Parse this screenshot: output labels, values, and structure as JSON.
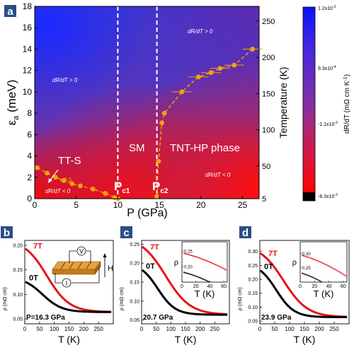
{
  "panels": {
    "a": "a",
    "b": "b",
    "c": "c",
    "d": "d"
  },
  "colors": {
    "panel_label_bg": "#2a4f86",
    "red_curve": "#e8141b",
    "black_curve": "#000000",
    "orange_points": "#f2a20a",
    "phase_line": "#ffffff",
    "low_color": "#ff0000",
    "high_color": "#0a1aff"
  },
  "chart_data": [
    {
      "id": "a",
      "type": "heatmap",
      "xlabel": "P (GPa)",
      "ylabel_left": "ε",
      "ylabel_left_sub": "a",
      "ylabel_left_unit": " (meV)",
      "ylabel_right": "Temperature (K)",
      "xlim": [
        0,
        27
      ],
      "ylim": [
        0,
        18
      ],
      "xticks": [
        0,
        5,
        10,
        15,
        20,
        25
      ],
      "yticks_left": [
        0,
        2,
        4,
        6,
        8,
        10,
        12,
        14,
        16,
        18
      ],
      "yticks_right": [
        5,
        50,
        100,
        150,
        200,
        250
      ],
      "phase_boundaries": [
        {
          "label": "P",
          "sub": "c1",
          "x": 10.0
        },
        {
          "label": "P",
          "sub": "c2",
          "x": 14.7
        }
      ],
      "region_labels": {
        "tts": "TT-S",
        "sm": "SM",
        "tnt": "TNT-HP phase",
        "drdt_pos_left": "dR/dT > 0",
        "drdt_neg_left": "dR/dT < 0",
        "drdt_pos_right": "dR/dT > 0",
        "drdt_neg_right": "dR/dT < 0",
        "scale_note": "x 0.5"
      },
      "gap_left": {
        "x": [
          0.3,
          1.5,
          2.5,
          3.5,
          4.5,
          5.5,
          7.0,
          8.5,
          9.6,
          10.0
        ],
        "y": [
          2.9,
          2.4,
          2.0,
          1.7,
          1.4,
          1.2,
          0.9,
          0.5,
          0.1,
          0.0
        ]
      },
      "gap_right": {
        "x": [
          14.7,
          14.9,
          15.3,
          15.6,
          17.7,
          19.7,
          21.2,
          22.3,
          24.0,
          26.2
        ],
        "y": [
          0.2,
          3.5,
          7.1,
          8.0,
          10.0,
          11.4,
          11.8,
          12.2,
          12.5,
          14.0
        ]
      },
      "colorbar": {
        "label": "dR/dT (mΩ cm K",
        "label_sup": "-1",
        "label_end": ")",
        "ticks": [
          "1.2x10",
          "9.3x10",
          "-1.1x10",
          "-8.3x10"
        ],
        "tick_exps": [
          "-2",
          "-4",
          "-3",
          "-3"
        ]
      }
    },
    {
      "id": "b",
      "type": "line",
      "xlabel": "T (K)",
      "ylabel": "ρ (mΩ cm)",
      "xlim": [
        0,
        300
      ],
      "ylim": [
        0.04,
        0.21
      ],
      "xticks": [
        0,
        50,
        100,
        150,
        200,
        250
      ],
      "yticks": [
        0.05,
        0.1,
        0.15,
        0.2
      ],
      "annotation": "P=16.3 GPa",
      "inset_labels": {
        "v": "V",
        "i": "I",
        "h": "H"
      },
      "series": [
        {
          "name": "7T",
          "T0": 75,
          "w": 38,
          "base": 0.064,
          "amp": 0.148
        },
        {
          "name": "0T",
          "T0": 60,
          "w": 33,
          "base": 0.064,
          "amp": 0.072
        }
      ]
    },
    {
      "id": "c",
      "type": "line",
      "xlabel": "T (K)",
      "ylabel": "ρ (mΩ cm)",
      "xlim": [
        0,
        300
      ],
      "ylim": [
        0.04,
        0.26
      ],
      "xticks": [
        0,
        50,
        100,
        150,
        200,
        250
      ],
      "yticks": [
        0.05,
        0.1,
        0.15,
        0.2,
        0.25
      ],
      "annotation": "20.7 GPa",
      "inset": {
        "xlabel": "T (K)",
        "ylabel": "ρ",
        "xticks": [
          0,
          20,
          40,
          60
        ],
        "yticks": [
          0.2,
          0.25
        ],
        "xlim": [
          0,
          65
        ],
        "ylim": [
          0.15,
          0.28
        ]
      },
      "series": [
        {
          "name": "7T",
          "T0": 82,
          "w": 42,
          "base": 0.064,
          "amp": 0.206
        },
        {
          "name": "0T",
          "T0": 55,
          "w": 30,
          "base": 0.064,
          "amp": 0.138
        }
      ]
    },
    {
      "id": "d",
      "type": "line",
      "xlabel": "T (K)",
      "ylabel": "ρ (mΩ cm)",
      "xlim": [
        0,
        300
      ],
      "ylim": [
        0.04,
        0.34
      ],
      "xticks": [
        0,
        50,
        100,
        150,
        200,
        250
      ],
      "yticks": [
        0.05,
        0.1,
        0.15,
        0.2,
        0.25,
        0.3
      ],
      "annotation": "23.9 GPa",
      "inset": {
        "xlabel": "T (K)",
        "ylabel": "ρ",
        "xticks": [
          0,
          20,
          40,
          60
        ],
        "yticks": [
          0.25,
          0.3
        ],
        "xlim": [
          0,
          65
        ],
        "ylim": [
          0.2,
          0.34
        ]
      },
      "series": [
        {
          "name": "7T",
          "T0": 80,
          "w": 40,
          "base": 0.064,
          "amp": 0.262
        },
        {
          "name": "0T",
          "T0": 55,
          "w": 30,
          "base": 0.064,
          "amp": 0.196
        }
      ]
    }
  ]
}
